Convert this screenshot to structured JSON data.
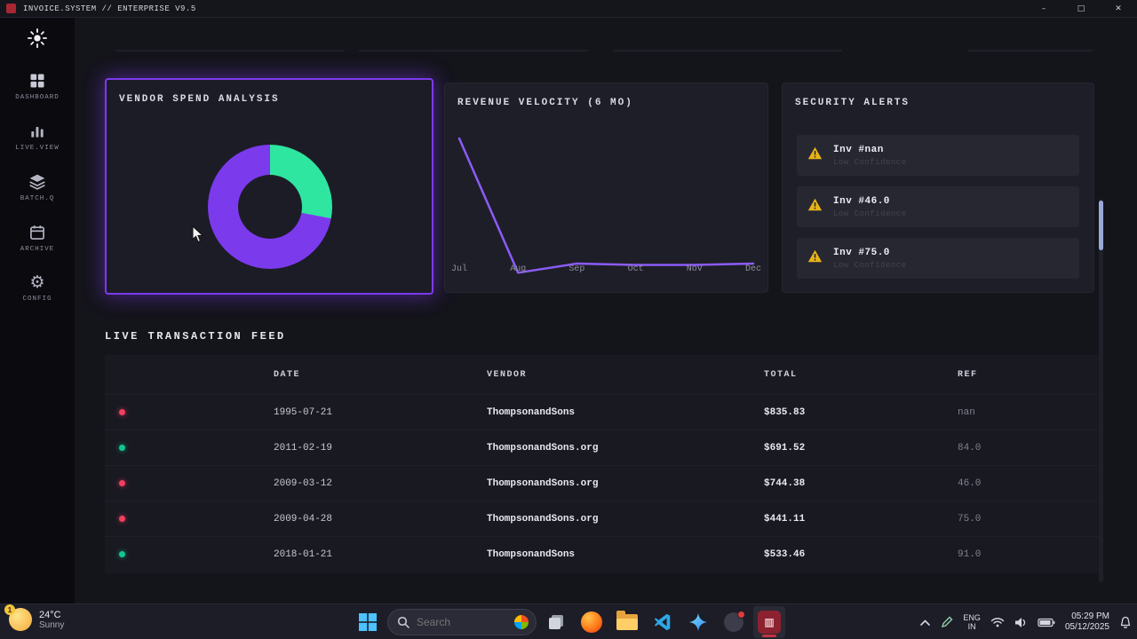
{
  "window": {
    "title": "INVOICE.SYSTEM // ENTERPRISE V9.5",
    "minimize": "–",
    "maximize": "□",
    "close": "✕"
  },
  "sidebar": {
    "items": [
      {
        "id": "dashboard",
        "label": "DASHBOARD"
      },
      {
        "id": "live-view",
        "label": "LIVE.VIEW"
      },
      {
        "id": "batch-q",
        "label": "BATCH.Q"
      },
      {
        "id": "archive",
        "label": "ARCHIVE"
      },
      {
        "id": "config",
        "label": "CONFIG"
      }
    ]
  },
  "panels": {
    "vendor": {
      "title": "VENDOR SPEND ANALYSIS"
    },
    "revenue": {
      "title": "REVENUE VELOCITY (6 MO)"
    },
    "alerts": {
      "title": "SECURITY ALERTS",
      "items": [
        {
          "title": "Inv #nan",
          "subtitle": "Low Confidence"
        },
        {
          "title": "Inv #46.0",
          "subtitle": "Low Confidence"
        },
        {
          "title": "Inv #75.0",
          "subtitle": "Low Confidence"
        }
      ]
    }
  },
  "chart_data": [
    {
      "type": "pie",
      "variant": "donut",
      "title": "VENDOR SPEND ANALYSIS",
      "segments": [
        {
          "label": "segment-green",
          "value": 28,
          "color": "#2ee6a0"
        },
        {
          "label": "segment-purple",
          "value": 72,
          "color": "#7c3aed"
        }
      ],
      "legend": "none"
    },
    {
      "type": "line",
      "title": "REVENUE VELOCITY (6 MO)",
      "x": [
        "Jul",
        "Aug",
        "Sep",
        "Oct",
        "Nov",
        "Dec"
      ],
      "values": [
        100,
        -3,
        4,
        3,
        3,
        4
      ],
      "ylim": [
        -10,
        105
      ],
      "line_color": "#8b5cf6",
      "grid": false,
      "legend": "none"
    }
  ],
  "feed": {
    "title": "LIVE TRANSACTION FEED",
    "columns": [
      "DATE",
      "VENDOR",
      "TOTAL",
      "REF"
    ],
    "rows": [
      {
        "status": "red",
        "date": "1995-07-21",
        "vendor": "ThompsonandSons",
        "total": "$835.83",
        "ref": "nan"
      },
      {
        "status": "green",
        "date": "2011-02-19",
        "vendor": "ThompsonandSons.org",
        "total": "$691.52",
        "ref": "84.0"
      },
      {
        "status": "red",
        "date": "2009-03-12",
        "vendor": "ThompsonandSons.org",
        "total": "$744.38",
        "ref": "46.0"
      },
      {
        "status": "red",
        "date": "2009-04-28",
        "vendor": "ThompsonandSons.org",
        "total": "$441.11",
        "ref": "75.0"
      },
      {
        "status": "green",
        "date": "2018-01-21",
        "vendor": "ThompsonandSons",
        "total": "$533.46",
        "ref": "91.0"
      }
    ]
  },
  "taskbar": {
    "weather": {
      "badge": "1",
      "temp": "24°C",
      "condition": "Sunny"
    },
    "search": {
      "placeholder": "Search"
    },
    "tray": {
      "lang_top": "ENG",
      "lang_bottom": "IN",
      "time": "05:29 PM",
      "date": "05/12/2025"
    }
  },
  "accent_colors": {
    "purple": "#7c3aed",
    "green": "#2ee6a0",
    "red": "#f43f5e",
    "amber": "#e7b416"
  }
}
